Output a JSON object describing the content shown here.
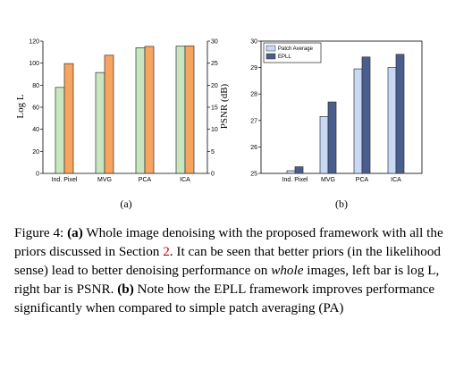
{
  "chart_data": [
    {
      "type": "bar",
      "categories": [
        "Ind. Pixel",
        "MVG",
        "PCA",
        "ICA"
      ],
      "series": [
        {
          "values": [
            78,
            91.5,
            114,
            115.5
          ],
          "color": "#c8e6c0",
          "axis": "left"
        },
        {
          "values": [
            24.9,
            26.8,
            28.8,
            28.9
          ],
          "color": "#f7a45e",
          "axis": "right"
        }
      ],
      "ylabel": "Log L",
      "ylabel_right": "PSNR (dB)",
      "ylim": [
        0,
        120
      ],
      "ylim_right": [
        0,
        30
      ],
      "yticks": [
        0,
        20,
        40,
        60,
        80,
        100,
        120
      ],
      "yticks_right": [
        0,
        5,
        10,
        15,
        20,
        25,
        30
      ],
      "panel_label": "(a)"
    },
    {
      "type": "bar",
      "categories": [
        "Ind. Pixel",
        "MVG",
        "PCA",
        "ICA"
      ],
      "series": [
        {
          "name": "Patch Average",
          "values": [
            25.1,
            27.15,
            28.95,
            29.0
          ],
          "color": "#c7d9f5"
        },
        {
          "name": "EPLL",
          "values": [
            25.25,
            27.7,
            29.4,
            29.5
          ],
          "color": "#4a5e8e"
        }
      ],
      "ylim": [
        25,
        30
      ],
      "yticks": [
        25,
        26,
        27,
        28,
        29,
        30
      ],
      "legend": "top-left",
      "panel_label": "(b)"
    }
  ],
  "caption": {
    "fig_label": "Figure 4:",
    "a_label": "(a)",
    "text1": "Whole image denoising with the proposed framework with all the priors discussed in Section",
    "ref": "2",
    "text2": ". It can be seen that better priors (in the likelihood sense) lead to better denoising performance on",
    "emph": "whole",
    "text3": "images, left bar is log L, right bar is PSNR.",
    "b_label": "(b)",
    "text4": "Note how the EPLL framework improves performance significantly when compared to simple patch averaging (PA)"
  }
}
